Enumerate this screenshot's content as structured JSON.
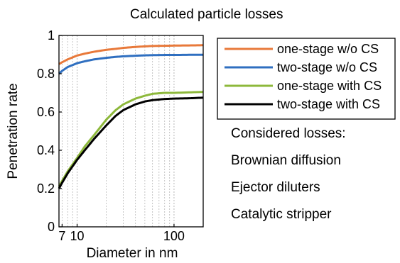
{
  "chart_data": {
    "type": "line",
    "title": "Calculated particle losses",
    "xlabel": "Diameter in nm",
    "ylabel": "Penetration rate",
    "xscale": "log",
    "xlim": [
      6.5,
      200
    ],
    "ylim": [
      0,
      1
    ],
    "xticks": [
      {
        "value": 7,
        "label": "7"
      },
      {
        "value": 10,
        "label": "10"
      },
      {
        "value": 100,
        "label": "100"
      }
    ],
    "yticks": [
      {
        "value": 0,
        "label": "0"
      },
      {
        "value": 0.2,
        "label": "0.2"
      },
      {
        "value": 0.4,
        "label": "0.4"
      },
      {
        "value": 0.6,
        "label": "0.6"
      },
      {
        "value": 0.8,
        "label": "0.8"
      },
      {
        "value": 1,
        "label": "1"
      }
    ],
    "grid": true,
    "legend_position": "right",
    "x": [
      6.5,
      7,
      8,
      10,
      12,
      15,
      20,
      25,
      30,
      40,
      50,
      60,
      80,
      100,
      150,
      200
    ],
    "series": [
      {
        "name": "one-stage w/o CS",
        "color": "#e8793a",
        "values": [
          0.85,
          0.86,
          0.875,
          0.895,
          0.905,
          0.915,
          0.925,
          0.93,
          0.935,
          0.94,
          0.943,
          0.945,
          0.946,
          0.947,
          0.948,
          0.949
        ]
      },
      {
        "name": "two-stage w/o CS",
        "color": "#2f6fc0",
        "values": [
          0.8,
          0.815,
          0.835,
          0.855,
          0.865,
          0.875,
          0.883,
          0.888,
          0.891,
          0.894,
          0.896,
          0.897,
          0.898,
          0.898,
          0.899,
          0.899
        ]
      },
      {
        "name": "one-stage with CS",
        "color": "#8db83b",
        "values": [
          0.21,
          0.24,
          0.29,
          0.36,
          0.42,
          0.48,
          0.56,
          0.61,
          0.64,
          0.67,
          0.685,
          0.695,
          0.7,
          0.7,
          0.703,
          0.705
        ]
      },
      {
        "name": "two-stage with CS",
        "color": "#000000",
        "values": [
          0.2,
          0.23,
          0.28,
          0.35,
          0.4,
          0.46,
          0.53,
          0.58,
          0.61,
          0.64,
          0.655,
          0.662,
          0.668,
          0.67,
          0.672,
          0.675
        ]
      }
    ],
    "annotations": [
      "Considered losses:",
      "Brownian diffusion",
      "Ejector diluters",
      "Catalytic stripper"
    ]
  }
}
